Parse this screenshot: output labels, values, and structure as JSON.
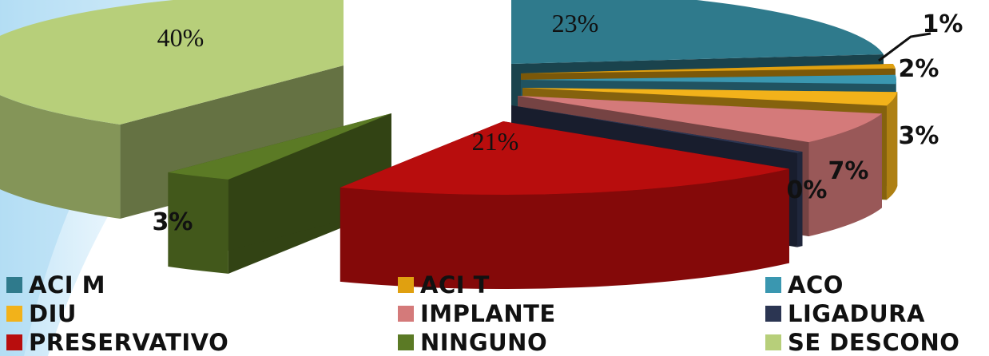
{
  "chart_data": {
    "type": "pie",
    "title": "",
    "style": "3d-exploded",
    "categories": [
      "ACI M",
      "ACI T",
      "ACO",
      "DIU",
      "IMPLANTE",
      "LIGADURA",
      "PRESERVATIVO",
      "NINGUNO",
      "SE DESCONO"
    ],
    "values": [
      23,
      1,
      2,
      3,
      7,
      0,
      21,
      3,
      40
    ],
    "value_labels": [
      "23%",
      "1%",
      "2%",
      "3%",
      "7%",
      "0%",
      "21%",
      "3%",
      "40%"
    ],
    "colors": [
      "#2f7a8c",
      "#e0a010",
      "#3a97b0",
      "#f2b21a",
      "#d47a7a",
      "#2b3552",
      "#b80d0d",
      "#5b7a25",
      "#b7cf7a"
    ],
    "legend_position": "bottom",
    "legend": [
      {
        "label": "ACI M",
        "color": "#2f7a8c"
      },
      {
        "label": "ACI T",
        "color": "#e0a010"
      },
      {
        "label": "ACO",
        "color": "#3a97b0"
      },
      {
        "label": "DIU",
        "color": "#f2b21a"
      },
      {
        "label": "IMPLANTE",
        "color": "#d47a7a"
      },
      {
        "label": "LIGADURA",
        "color": "#2b3552"
      },
      {
        "label": "PRESERVATIVO",
        "color": "#b80d0d"
      },
      {
        "label": "NINGUNO",
        "color": "#5b7a25"
      },
      {
        "label": "SE DESCONO",
        "color": "#b7cf7a"
      }
    ]
  }
}
